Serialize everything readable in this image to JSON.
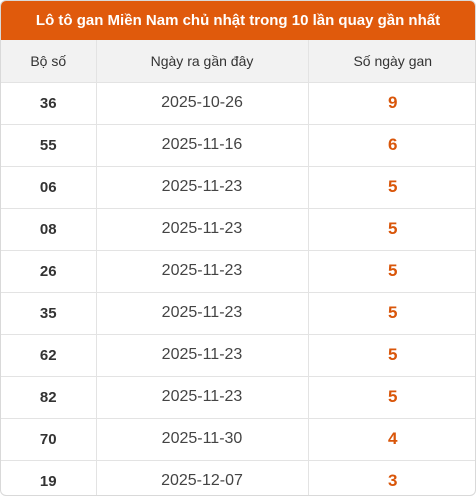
{
  "title": "Lô tô gan Miền Nam chủ nhật trong 10 lần quay gần nhất",
  "accent_color": "#e05a0c",
  "headers": {
    "lo": "Bộ số",
    "last_date": "Ngày ra gần đây",
    "days": "Số ngày gan"
  },
  "rows": [
    {
      "lo": "36",
      "last_date": "2025-10-26",
      "days": "9"
    },
    {
      "lo": "55",
      "last_date": "2025-11-16",
      "days": "6"
    },
    {
      "lo": "06",
      "last_date": "2025-11-23",
      "days": "5"
    },
    {
      "lo": "08",
      "last_date": "2025-11-23",
      "days": "5"
    },
    {
      "lo": "26",
      "last_date": "2025-11-23",
      "days": "5"
    },
    {
      "lo": "35",
      "last_date": "2025-11-23",
      "days": "5"
    },
    {
      "lo": "62",
      "last_date": "2025-11-23",
      "days": "5"
    },
    {
      "lo": "82",
      "last_date": "2025-11-23",
      "days": "5"
    },
    {
      "lo": "70",
      "last_date": "2025-11-30",
      "days": "4"
    },
    {
      "lo": "19",
      "last_date": "2025-12-07",
      "days": "3"
    }
  ]
}
